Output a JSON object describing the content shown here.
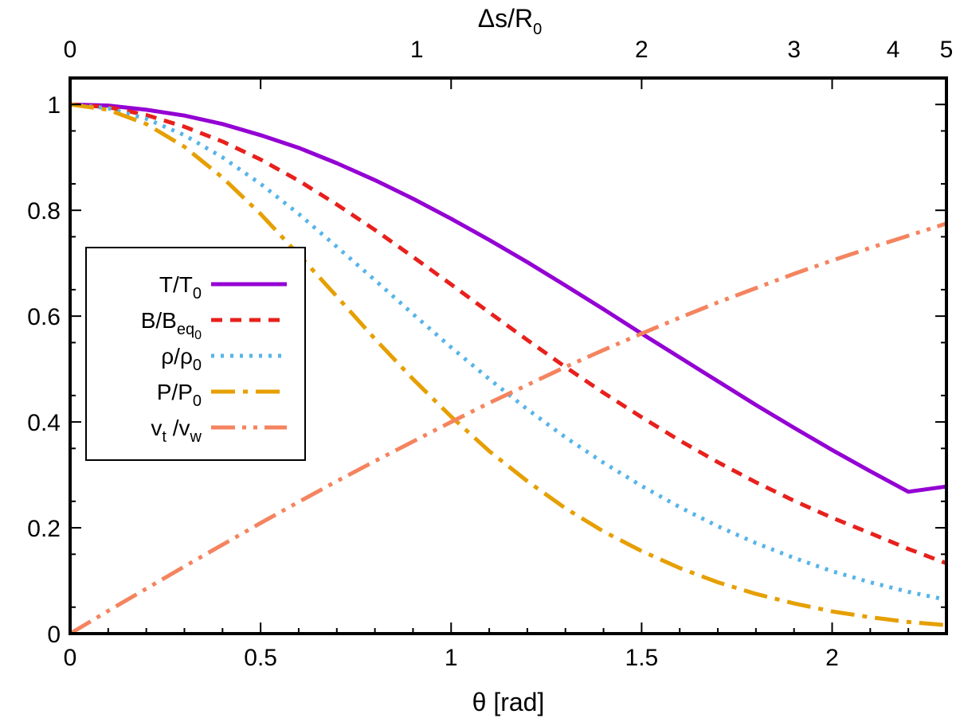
{
  "chart_data": {
    "type": "line",
    "title": "",
    "xlabel": "θ [rad]",
    "xlim": [
      0,
      2.3
    ],
    "ylim": [
      0,
      1.05
    ],
    "x_ticks": [
      "0",
      "0.5",
      "1",
      "1.5",
      "2"
    ],
    "y_ticks": [
      "0",
      "0.2",
      "0.4",
      "0.6",
      "0.8",
      "1"
    ],
    "top_axis": {
      "label": {
        "base": "Δs/R",
        "sub": "0"
      },
      "ticks": [
        {
          "label": "0",
          "theta": 0
        },
        {
          "label": "1",
          "theta": 0.91
        },
        {
          "label": "2",
          "theta": 1.5
        },
        {
          "label": "3",
          "theta": 1.9
        },
        {
          "label": "4",
          "theta": 2.16
        },
        {
          "label": "5",
          "theta": 2.3
        }
      ]
    },
    "grid": false,
    "legend_position": "left-middle",
    "x": [
      0,
      0.1,
      0.2,
      0.3,
      0.4,
      0.5,
      0.6,
      0.7,
      0.8,
      0.9,
      1.0,
      1.1,
      1.2,
      1.3,
      1.4,
      1.5,
      1.6,
      1.7,
      1.8,
      1.9,
      2.0,
      2.1,
      2.2,
      2.3
    ],
    "series": [
      {
        "legend": {
          "base": "T/T",
          "sub": "0",
          "mid": "",
          "sub2": "",
          "tail": ""
        },
        "color": "#9400d3",
        "dash": "solid",
        "values": [
          1.0,
          0.998,
          0.99,
          0.979,
          0.963,
          0.942,
          0.918,
          0.889,
          0.857,
          0.822,
          0.784,
          0.744,
          0.702,
          0.658,
          0.613,
          0.567,
          0.522,
          0.477,
          0.432,
          0.389,
          0.347,
          0.307,
          0.268,
          0.278
        ]
      },
      {
        "legend": {
          "base": "B/B",
          "sub": "eq",
          "subsub": "0",
          "mid": "",
          "sub2": "",
          "tail": ""
        },
        "color": "#e8201c",
        "dash": "dash",
        "values": [
          1.0,
          0.995,
          0.98,
          0.958,
          0.93,
          0.896,
          0.856,
          0.811,
          0.763,
          0.712,
          0.66,
          0.607,
          0.555,
          0.504,
          0.455,
          0.409,
          0.365,
          0.324,
          0.286,
          0.251,
          0.219,
          0.19,
          0.16,
          0.133
        ]
      },
      {
        "legend": {
          "base": "ρ/ρ",
          "sub": "0",
          "mid": "",
          "sub2": "",
          "tail": ""
        },
        "color": "#56b4e9",
        "dash": "dot",
        "values": [
          1.0,
          0.993,
          0.973,
          0.942,
          0.9,
          0.85,
          0.793,
          0.731,
          0.668,
          0.604,
          0.541,
          0.481,
          0.424,
          0.371,
          0.323,
          0.279,
          0.239,
          0.203,
          0.171,
          0.143,
          0.118,
          0.097,
          0.079,
          0.064
        ]
      },
      {
        "legend": {
          "base": "P/P",
          "sub": "0",
          "mid": "",
          "sub2": "",
          "tail": ""
        },
        "color": "#e69f00",
        "dash": "dashdot",
        "values": [
          1.0,
          0.99,
          0.963,
          0.92,
          0.862,
          0.793,
          0.716,
          0.637,
          0.557,
          0.481,
          0.41,
          0.345,
          0.288,
          0.237,
          0.193,
          0.156,
          0.124,
          0.097,
          0.075,
          0.057,
          0.042,
          0.031,
          0.022,
          0.016
        ]
      },
      {
        "legend": {
          "base": "v",
          "sub": "t",
          "mid": " /v",
          "sub2": "w",
          "tail": ""
        },
        "color": "#f4845f",
        "dash": "dashdotdot",
        "values": [
          0.0,
          0.043,
          0.085,
          0.127,
          0.168,
          0.209,
          0.249,
          0.288,
          0.326,
          0.363,
          0.4,
          0.436,
          0.47,
          0.504,
          0.536,
          0.567,
          0.597,
          0.626,
          0.653,
          0.68,
          0.705,
          0.729,
          0.752,
          0.775
        ]
      }
    ]
  }
}
